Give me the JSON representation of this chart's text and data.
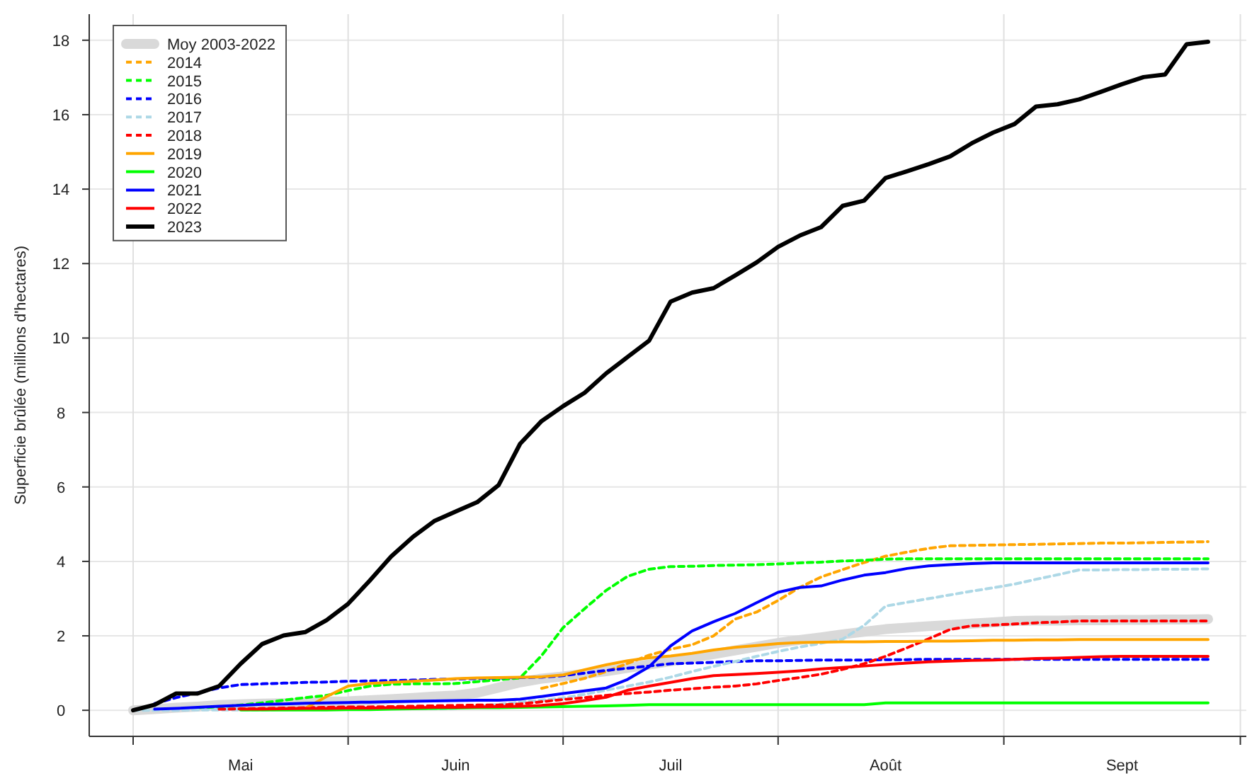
{
  "chart_data": {
    "type": "line",
    "ylabel": "Superficie brûlée (millions d'hectares)",
    "categories": [
      null,
      null,
      null,
      null,
      null,
      "Mai",
      null,
      null,
      null,
      null,
      null,
      null,
      null,
      null,
      null,
      "Juin",
      null,
      null,
      null,
      null,
      null,
      null,
      null,
      null,
      null,
      "Juil",
      null,
      null,
      null,
      null,
      null,
      null,
      null,
      null,
      null,
      "Août",
      null,
      null,
      null,
      null,
      null,
      null,
      null,
      null,
      null,
      null,
      "Sept",
      null,
      null,
      null,
      null
    ],
    "ylim": [
      -0.7,
      18.7
    ],
    "yticks": [
      0,
      2,
      4,
      6,
      8,
      10,
      12,
      14,
      16,
      18
    ],
    "grid": true,
    "legend": "top left",
    "series": [
      {
        "name": "Moy 2003-2022",
        "color": "#d9d9d9",
        "line_style": "solid",
        "values": [
          0,
          0.03,
          0.07,
          0.1,
          0.14,
          0.16,
          0.18,
          0.19,
          0.21,
          0.23,
          0.24,
          0.27,
          0.3,
          0.33,
          0.37,
          0.4,
          0.47,
          0.61,
          0.75,
          0.85,
          0.91,
          0.98,
          1.05,
          1.14,
          1.23,
          1.32,
          1.41,
          1.51,
          1.61,
          1.71,
          1.81,
          1.89,
          1.96,
          2.04,
          2.11,
          2.18,
          2.22,
          2.26,
          2.29,
          2.33,
          2.36,
          2.4,
          2.41,
          2.41,
          2.42,
          2.42,
          2.43,
          2.43,
          2.44,
          2.44,
          2.45
        ]
      },
      {
        "name": "2014",
        "color": "#ffa500",
        "line_style": "dashed",
        "values": [
          null,
          null,
          null,
          null,
          null,
          null,
          null,
          null,
          null,
          null,
          null,
          null,
          null,
          null,
          null,
          null,
          null,
          null,
          null,
          0.59,
          0.72,
          0.86,
          1.04,
          1.26,
          1.48,
          1.64,
          1.76,
          2.0,
          2.45,
          2.64,
          2.95,
          3.3,
          3.58,
          3.78,
          3.97,
          4.14,
          4.25,
          4.35,
          4.42,
          4.43,
          4.44,
          4.45,
          4.46,
          4.47,
          4.48,
          4.49,
          4.49,
          4.5,
          4.51,
          4.52,
          4.53
        ]
      },
      {
        "name": "2015",
        "color": "#00ff00",
        "line_style": "dashed",
        "values": [
          null,
          null,
          null,
          0.07,
          0.09,
          0.14,
          0.2,
          0.27,
          0.34,
          0.4,
          0.53,
          0.65,
          0.7,
          0.71,
          0.71,
          0.72,
          0.77,
          0.82,
          0.87,
          1.47,
          2.22,
          2.73,
          3.22,
          3.6,
          3.79,
          3.86,
          3.87,
          3.89,
          3.9,
          3.91,
          3.93,
          3.96,
          3.98,
          4.01,
          4.03,
          4.06,
          4.07,
          4.07,
          4.07,
          4.07,
          4.07,
          4.07,
          4.07,
          4.07,
          4.07,
          4.07,
          4.07,
          4.07,
          4.07,
          4.07,
          4.07
        ]
      },
      {
        "name": "2016",
        "color": "#0000ff",
        "line_style": "dashed",
        "values": [
          null,
          0.18,
          0.34,
          0.47,
          0.6,
          0.69,
          0.71,
          0.73,
          0.75,
          0.76,
          0.78,
          0.79,
          0.8,
          0.81,
          0.83,
          0.84,
          0.85,
          0.87,
          0.88,
          0.89,
          0.93,
          1.0,
          1.07,
          1.13,
          1.19,
          1.25,
          1.27,
          1.29,
          1.31,
          1.33,
          1.33,
          1.34,
          1.35,
          1.35,
          1.35,
          1.36,
          1.36,
          1.37,
          1.37,
          1.37,
          1.37,
          1.37,
          1.37,
          1.37,
          1.37,
          1.37,
          1.37,
          1.37,
          1.37,
          1.37,
          1.37
        ]
      },
      {
        "name": "2017",
        "color": "#add8e6",
        "line_style": "dashed",
        "values": [
          0,
          0,
          0,
          0.01,
          0.01,
          0.01,
          0.01,
          0.02,
          0.02,
          0.02,
          0.03,
          0.04,
          0.04,
          0.04,
          0.04,
          0.05,
          0.11,
          0.16,
          0.22,
          0.27,
          0.33,
          0.43,
          0.54,
          0.65,
          0.76,
          0.89,
          1.04,
          1.18,
          1.31,
          1.45,
          1.58,
          1.7,
          1.8,
          1.91,
          2.28,
          2.8,
          2.9,
          3.0,
          3.1,
          3.2,
          3.29,
          3.39,
          3.52,
          3.64,
          3.77,
          3.77,
          3.78,
          3.78,
          3.79,
          3.79,
          3.8
        ]
      },
      {
        "name": "2018",
        "color": "#ff0000",
        "line_style": "dashed",
        "values": [
          null,
          null,
          null,
          null,
          0.03,
          0.04,
          0.05,
          0.06,
          0.07,
          0.08,
          0.09,
          0.09,
          0.1,
          0.11,
          0.12,
          0.13,
          0.14,
          0.14,
          0.17,
          0.23,
          0.29,
          0.34,
          0.4,
          0.45,
          0.49,
          0.54,
          0.58,
          0.62,
          0.65,
          0.71,
          0.8,
          0.88,
          0.97,
          1.1,
          1.25,
          1.45,
          1.68,
          1.92,
          2.17,
          2.27,
          2.29,
          2.32,
          2.35,
          2.37,
          2.4,
          2.4,
          2.4,
          2.4,
          2.4,
          2.4,
          2.4
        ]
      },
      {
        "name": "2019",
        "color": "#ffa500",
        "line_style": "solid",
        "values": [
          null,
          null,
          null,
          null,
          null,
          null,
          null,
          0.04,
          0.05,
          0.37,
          0.65,
          0.72,
          0.75,
          0.78,
          0.81,
          0.85,
          0.87,
          0.88,
          0.89,
          0.9,
          0.95,
          1.09,
          1.22,
          1.33,
          1.41,
          1.46,
          1.53,
          1.62,
          1.69,
          1.74,
          1.79,
          1.82,
          1.83,
          1.84,
          1.84,
          1.85,
          1.85,
          1.86,
          1.86,
          1.87,
          1.88,
          1.88,
          1.89,
          1.89,
          1.9,
          1.9,
          1.9,
          1.9,
          1.9,
          1.9,
          1.9
        ]
      },
      {
        "name": "2020",
        "color": "#00ff00",
        "line_style": "solid",
        "values": [
          null,
          null,
          null,
          null,
          null,
          0.01,
          0.01,
          0.01,
          0.01,
          0.01,
          0.02,
          0.02,
          0.03,
          0.04,
          0.05,
          0.06,
          0.07,
          0.07,
          0.08,
          0.09,
          0.1,
          0.11,
          0.12,
          0.13,
          0.15,
          0.15,
          0.15,
          0.15,
          0.15,
          0.15,
          0.15,
          0.15,
          0.15,
          0.15,
          0.15,
          0.2,
          0.2,
          0.2,
          0.2,
          0.2,
          0.2,
          0.2,
          0.2,
          0.2,
          0.2,
          0.2,
          0.2,
          0.2,
          0.2,
          0.2,
          0.2
        ]
      },
      {
        "name": "2021",
        "color": "#0000ff",
        "line_style": "solid",
        "values": [
          null,
          0.03,
          0.05,
          0.08,
          0.11,
          0.13,
          0.16,
          0.17,
          0.19,
          0.2,
          0.21,
          0.22,
          0.23,
          0.24,
          0.25,
          0.26,
          0.27,
          0.27,
          0.3,
          0.37,
          0.45,
          0.52,
          0.6,
          0.83,
          1.17,
          1.73,
          2.13,
          2.38,
          2.6,
          2.89,
          3.17,
          3.3,
          3.34,
          3.5,
          3.63,
          3.7,
          3.81,
          3.88,
          3.91,
          3.94,
          3.96,
          3.96,
          3.96,
          3.96,
          3.96,
          3.96,
          3.96,
          3.96,
          3.96,
          3.96,
          3.96
        ]
      },
      {
        "name": "2022",
        "color": "#ff0000",
        "line_style": "solid",
        "values": [
          null,
          null,
          null,
          null,
          null,
          0.03,
          0.03,
          0.04,
          0.05,
          0.05,
          0.06,
          0.06,
          0.07,
          0.07,
          0.08,
          0.08,
          0.09,
          0.1,
          0.11,
          0.13,
          0.18,
          0.26,
          0.35,
          0.54,
          0.65,
          0.75,
          0.85,
          0.93,
          0.96,
          0.99,
          1.02,
          1.06,
          1.11,
          1.15,
          1.19,
          1.23,
          1.27,
          1.3,
          1.32,
          1.34,
          1.35,
          1.37,
          1.39,
          1.4,
          1.42,
          1.44,
          1.45,
          1.45,
          1.45,
          1.45,
          1.45
        ]
      },
      {
        "name": "2023",
        "color": "#000000",
        "line_style": "solid",
        "values": [
          0,
          0.15,
          0.45,
          0.45,
          0.65,
          1.25,
          1.78,
          2.01,
          2.1,
          2.42,
          2.86,
          3.48,
          4.13,
          4.65,
          5.08,
          5.34,
          5.59,
          6.05,
          7.16,
          7.77,
          8.17,
          8.53,
          9.05,
          9.49,
          9.93,
          10.98,
          11.22,
          11.34,
          11.68,
          12.03,
          12.45,
          12.75,
          12.98,
          13.55,
          13.69,
          14.3,
          14.48,
          14.67,
          14.88,
          15.23,
          15.52,
          15.75,
          16.22,
          16.28,
          16.41,
          16.61,
          16.82,
          17.01,
          17.08,
          17.89,
          17.96
        ]
      }
    ]
  }
}
